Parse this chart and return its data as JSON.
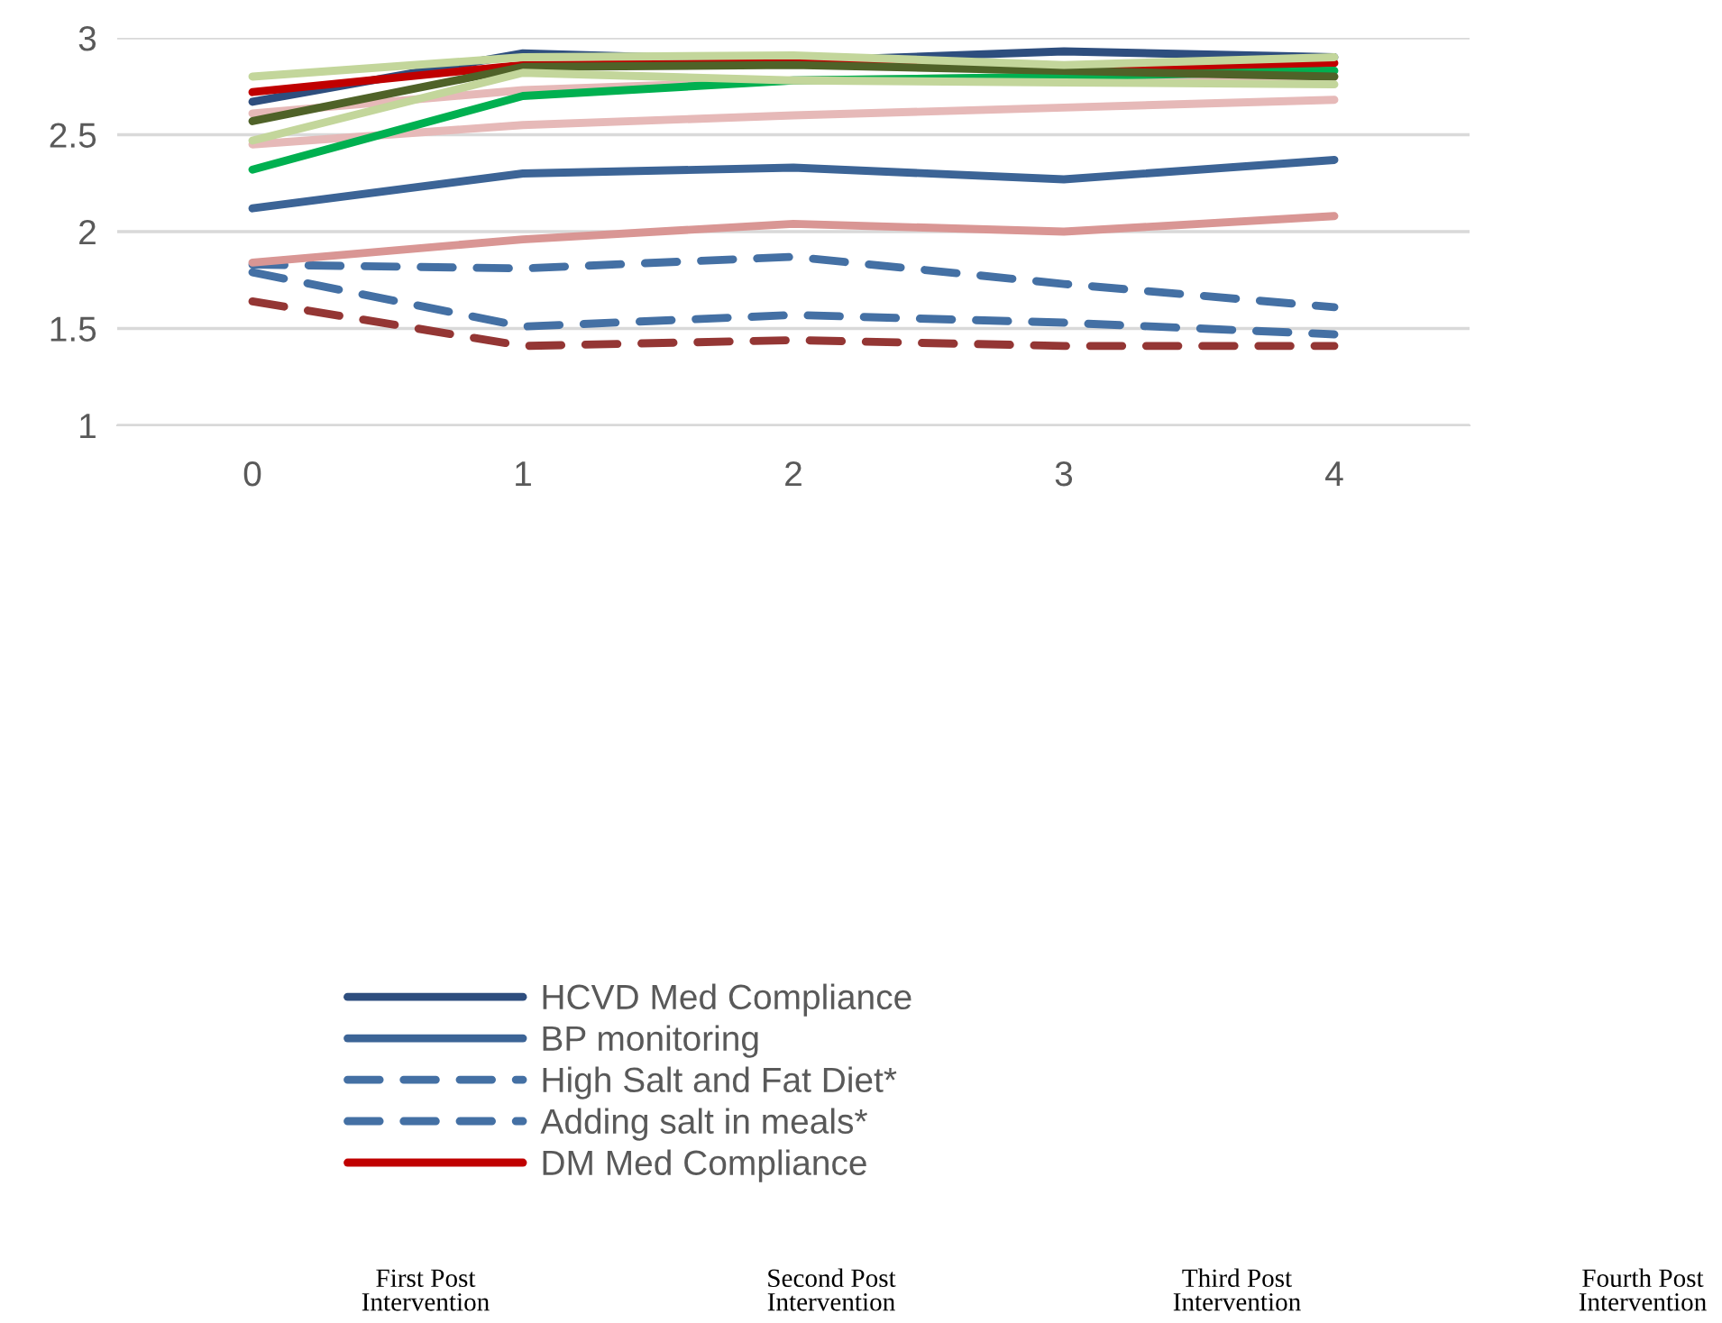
{
  "chart_data": {
    "type": "line",
    "categories": [
      "0",
      "1",
      "2",
      "3",
      "4"
    ],
    "ylim": [
      1,
      3
    ],
    "yticks": [
      1,
      1.5,
      2,
      2.5,
      3
    ],
    "grid": "y",
    "legend": "bottom",
    "marker": "none",
    "series": [
      {
        "name": "HCVD Med Compliance",
        "color": "#2e4e7e",
        "line_style": "solid",
        "values": [
          2.67,
          2.92,
          2.88,
          2.93,
          2.9
        ]
      },
      {
        "name": "BP monitoring",
        "color": "#3c6496",
        "line_style": "solid",
        "values": [
          2.12,
          2.3,
          2.33,
          2.27,
          2.37
        ]
      },
      {
        "name": "High Salt and Fat Diet*",
        "color": "#4470a4",
        "line_style": "dashed",
        "values": [
          1.83,
          1.81,
          1.87,
          1.73,
          1.61
        ]
      },
      {
        "name": "Adding salt in meals*",
        "color": "#4470a4",
        "line_style": "dashed",
        "values": [
          1.79,
          1.51,
          1.57,
          1.53,
          1.47
        ]
      },
      {
        "name": "DM Med Compliance",
        "color": "#c00000",
        "line_style": "solid",
        "values": [
          2.72,
          2.86,
          2.87,
          2.83,
          2.87
        ]
      },
      {
        "color": "#943634",
        "line_style": "dashed",
        "values": [
          1.64,
          1.41,
          1.44,
          1.41,
          1.41
        ]
      },
      {
        "color": "#d99694",
        "line_style": "solid",
        "values": [
          1.84,
          1.96,
          2.04,
          2.0,
          2.08
        ]
      },
      {
        "color": "#e6b9b8",
        "line_style": "solid",
        "values": [
          2.61,
          2.73,
          2.78,
          2.8,
          2.8
        ]
      },
      {
        "color": "#e6b9b8",
        "line_style": "solid",
        "values": [
          2.45,
          2.55,
          2.6,
          2.64,
          2.68
        ]
      },
      {
        "color": "#00b050",
        "line_style": "solid",
        "values": [
          2.32,
          2.7,
          2.78,
          2.8,
          2.83
        ]
      },
      {
        "color": "#4f6228",
        "line_style": "solid",
        "values": [
          2.57,
          2.85,
          2.86,
          2.83,
          2.8
        ]
      },
      {
        "color": "#c3d69b",
        "line_style": "solid",
        "values": [
          2.47,
          2.82,
          2.78,
          2.77,
          2.76
        ]
      },
      {
        "color": "#c3d69b",
        "line_style": "solid",
        "values": [
          2.8,
          2.9,
          2.91,
          2.86,
          2.9
        ]
      }
    ],
    "annotations": [
      "First Post Intervention",
      "Second Post Intervention",
      "Third Post Intervention",
      "Fourth Post Intervention"
    ]
  }
}
